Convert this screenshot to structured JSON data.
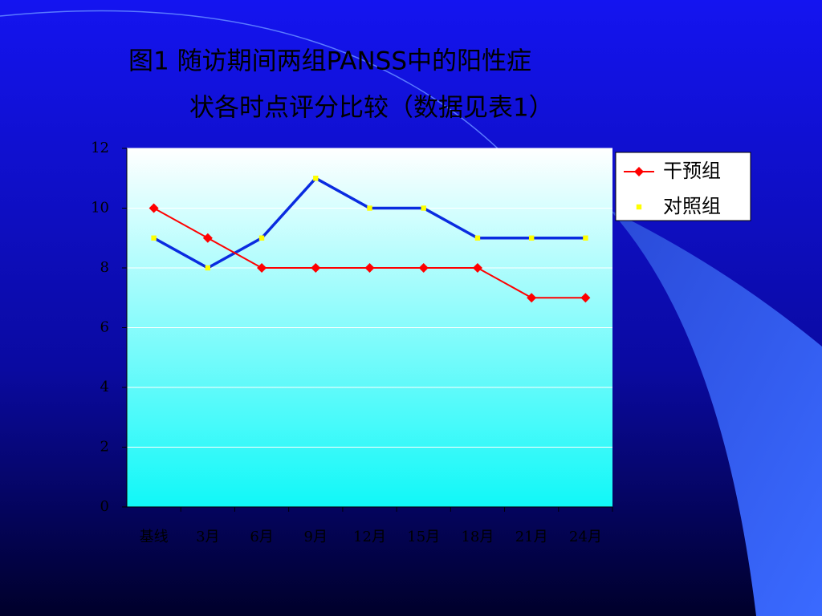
{
  "chart_data": {
    "type": "line",
    "title_lines": [
      "图1 随访期间两组PANSS中的阳性症",
      "状各时点评分比较（数据见表1）"
    ],
    "categories": [
      "基线",
      "3月",
      "6月",
      "9月",
      "12月",
      "15月",
      "18月",
      "21月",
      "24月"
    ],
    "series": [
      {
        "name": "干预组",
        "color": "#ff0000",
        "marker_color": "#ff0000",
        "marker": "diamond",
        "values": [
          10,
          9,
          8,
          8,
          8,
          8,
          8,
          7,
          7
        ]
      },
      {
        "name": "对照组",
        "color": "#0a2be0",
        "marker_color": "#ffff00",
        "marker": "square",
        "values": [
          9,
          8,
          9,
          11,
          10,
          10,
          9,
          9,
          9
        ]
      }
    ],
    "ylim": [
      0,
      12
    ],
    "yticks": [
      0,
      2,
      4,
      6,
      8,
      10,
      12
    ],
    "grid": true
  }
}
